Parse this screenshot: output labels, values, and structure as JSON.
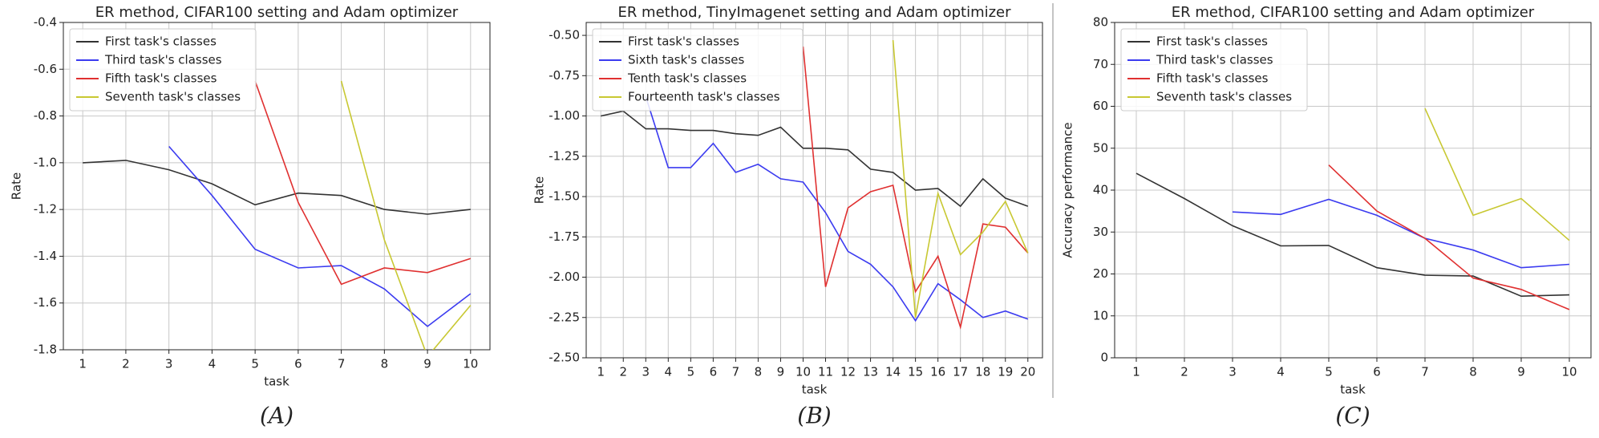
{
  "chart_data": [
    {
      "type": "line",
      "title": "ER method, CIFAR100 setting and Adam optimizer",
      "xlabel": "task",
      "ylabel": "Rate",
      "panel_label": "(A)",
      "x": [
        1,
        2,
        3,
        4,
        5,
        6,
        7,
        8,
        9,
        10
      ],
      "xlim": [
        0.55,
        10.45
      ],
      "xticks": [
        1,
        2,
        3,
        4,
        5,
        6,
        7,
        8,
        9,
        10
      ],
      "ylim": [
        -1.8,
        -0.4
      ],
      "yticks": [
        -1.8,
        -1.6,
        -1.4,
        -1.2,
        {
          "value": -1,
          "label": "-1.0"
        },
        -0.8,
        -0.6,
        -0.4
      ],
      "grid": true,
      "legend": "upper-left",
      "series": [
        {
          "name": "First task's classes",
          "color": "#333333",
          "values": [
            -1.0,
            -0.99,
            -1.03,
            -1.09,
            -1.18,
            -1.13,
            -1.14,
            -1.2,
            -1.22,
            -1.2
          ]
        },
        {
          "name": "Third task's classes",
          "color": "#3b3bf0",
          "values": [
            null,
            null,
            -0.93,
            -1.14,
            -1.37,
            -1.45,
            -1.44,
            -1.54,
            -1.7,
            -1.56
          ]
        },
        {
          "name": "Fifth task's classes",
          "color": "#e03030",
          "values": [
            null,
            null,
            null,
            null,
            -0.65,
            -1.17,
            -1.52,
            -1.45,
            -1.47,
            -1.41
          ]
        },
        {
          "name": "Seventh task's classes",
          "color": "#c8c832",
          "values": [
            null,
            null,
            null,
            null,
            null,
            null,
            -0.65,
            -1.33,
            -1.83,
            -1.61
          ]
        }
      ]
    },
    {
      "type": "line",
      "title": "ER method, TinyImagenet setting and Adam optimizer",
      "xlabel": "task",
      "ylabel": "Rate",
      "panel_label": "(B)",
      "x": [
        1,
        2,
        3,
        4,
        5,
        6,
        7,
        8,
        9,
        10,
        11,
        12,
        13,
        14,
        15,
        16,
        17,
        18,
        19,
        20
      ],
      "xlim": [
        0.35,
        20.65
      ],
      "xticks": [
        1,
        2,
        3,
        4,
        5,
        6,
        7,
        8,
        9,
        10,
        11,
        12,
        13,
        14,
        15,
        16,
        17,
        18,
        19,
        20
      ],
      "ylim": [
        -2.5,
        -0.42
      ],
      "yticks": [
        {
          "value": -2.5,
          "label": "-2.50"
        },
        -2.25,
        {
          "value": -2,
          "label": "-2.00"
        },
        -1.75,
        {
          "value": -1.5,
          "label": "-1.50"
        },
        -1.25,
        {
          "value": -1,
          "label": "-1.00"
        },
        -0.75,
        {
          "value": -0.5,
          "label": "-0.50"
        }
      ],
      "grid": true,
      "legend": "upper-left",
      "series": [
        {
          "name": "First task's classes",
          "color": "#333333",
          "values": [
            -1.0,
            -0.97,
            -1.08,
            -1.08,
            -1.09,
            -1.09,
            -1.11,
            -1.12,
            -1.07,
            -1.2,
            -1.2,
            -1.21,
            -1.33,
            -1.35,
            -1.46,
            -1.45,
            -1.56,
            -1.39,
            -1.51,
            -1.56
          ]
        },
        {
          "name": "Sixth task's classes",
          "color": "#3b3bf0",
          "values": [
            null,
            null,
            -0.88,
            -1.32,
            -1.32,
            -1.17,
            -1.35,
            -1.3,
            -1.39,
            -1.41,
            -1.6,
            -1.84,
            -1.92,
            -2.06,
            -2.27,
            -2.04,
            -2.14,
            -2.25,
            -2.21,
            -2.26
          ]
        },
        {
          "name": "Tenth task's classes",
          "color": "#e03030",
          "values": [
            null,
            null,
            null,
            null,
            null,
            null,
            null,
            null,
            null,
            -0.57,
            -2.06,
            -1.57,
            -1.47,
            -1.43,
            -2.09,
            -1.87,
            -2.31,
            -1.67,
            -1.69,
            -1.85
          ]
        },
        {
          "name": "Fourteenth task's classes",
          "color": "#c8c832",
          "values": [
            null,
            null,
            null,
            null,
            null,
            null,
            null,
            null,
            null,
            null,
            null,
            null,
            null,
            -0.53,
            -2.25,
            -1.48,
            -1.86,
            -1.72,
            -1.53,
            -1.85
          ]
        }
      ]
    },
    {
      "type": "line",
      "title": "ER method, CIFAR100 setting and Adam optimizer",
      "xlabel": "task",
      "ylabel": "Accuracy performance",
      "panel_label": "(C)",
      "x": [
        1,
        2,
        3,
        4,
        5,
        6,
        7,
        8,
        9,
        10
      ],
      "xlim": [
        0.55,
        10.45
      ],
      "xticks": [
        1,
        2,
        3,
        4,
        5,
        6,
        7,
        8,
        9,
        10
      ],
      "ylim": [
        0,
        80
      ],
      "yticks": [
        0,
        10,
        20,
        30,
        40,
        50,
        60,
        70,
        80
      ],
      "grid": true,
      "legend": "upper-left",
      "series": [
        {
          "name": "First task's classes",
          "color": "#333333",
          "values": [
            44,
            38,
            31.5,
            26.7,
            26.8,
            21.5,
            19.7,
            19.5,
            14.7,
            15
          ]
        },
        {
          "name": "Third task's classes",
          "color": "#3b3bf0",
          "values": [
            null,
            null,
            34.8,
            34.2,
            37.8,
            34,
            28.5,
            25.7,
            21.5,
            22.3
          ]
        },
        {
          "name": "Fifth task's classes",
          "color": "#e03030",
          "values": [
            null,
            null,
            null,
            null,
            46,
            35,
            28.5,
            19,
            16.3,
            11.5
          ]
        },
        {
          "name": "Seventh task's classes",
          "color": "#c8c832",
          "values": [
            null,
            null,
            null,
            null,
            null,
            null,
            59.5,
            34,
            38,
            28
          ]
        }
      ]
    }
  ]
}
